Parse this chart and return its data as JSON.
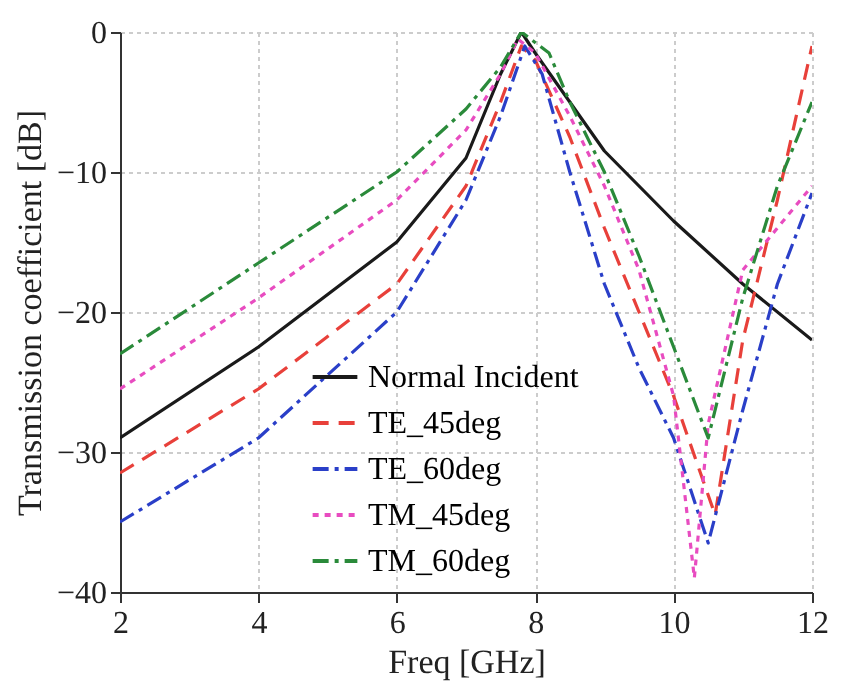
{
  "chart_data": {
    "type": "line",
    "xlabel": "Freq [GHz]",
    "ylabel": "Transmission coefficient [dB]",
    "xlim": [
      2,
      12
    ],
    "xticks": [
      2,
      4,
      6,
      8,
      10,
      12
    ],
    "ylim": [
      -40,
      0
    ],
    "yticks": [
      -40,
      -30,
      -20,
      -10,
      0
    ],
    "grid": true,
    "legend": "bottom",
    "marker": "none",
    "series": [
      {
        "name": "Normal Incident",
        "color": "#1a1a1a",
        "line_style": "solid",
        "x": [
          2,
          4,
          6,
          7,
          7.5,
          7.8,
          8,
          8.5,
          9,
          10,
          11,
          12
        ],
        "values": [
          -29,
          -22.5,
          -15,
          -9,
          -3,
          0,
          -1.5,
          -5,
          -8.5,
          -13.5,
          -18,
          -22
        ]
      },
      {
        "name": "TE_45deg",
        "color": "#e8403a",
        "line_style": "dashed",
        "x": [
          2,
          4,
          6,
          7,
          7.5,
          7.8,
          8,
          8.5,
          9,
          9.5,
          10,
          10.6,
          11,
          11.5,
          12
        ],
        "values": [
          -31.5,
          -25.5,
          -18,
          -11,
          -5,
          -1,
          -2,
          -7.5,
          -14,
          -20,
          -26,
          -34.5,
          -22,
          -12,
          -1
        ]
      },
      {
        "name": "TE_60deg",
        "color": "#2a3fc8",
        "line_style": "dashdot",
        "x": [
          2,
          4,
          6,
          7,
          7.5,
          7.85,
          8.1,
          8.5,
          9,
          9.5,
          10,
          10.5,
          11,
          11.5,
          12
        ],
        "values": [
          -35,
          -29,
          -20,
          -12,
          -6,
          -1,
          -3,
          -10,
          -18,
          -24,
          -29,
          -36.5,
          -27,
          -18,
          -11.5
        ]
      },
      {
        "name": "TM_45deg",
        "color": "#e84cc0",
        "line_style": "dotted",
        "x": [
          2,
          4,
          6,
          7,
          7.5,
          7.75,
          8,
          8.5,
          9,
          9.5,
          10,
          10.3,
          10.5,
          11,
          12
        ],
        "values": [
          -25.5,
          -19,
          -12,
          -7,
          -3,
          -0.5,
          -1.5,
          -6,
          -11,
          -17,
          -26,
          -39,
          -28,
          -17,
          -11
        ]
      },
      {
        "name": "TM_60deg",
        "color": "#2a8a3a",
        "line_style": "dashdot",
        "x": [
          2,
          4,
          6,
          7,
          7.5,
          7.8,
          8.2,
          8.5,
          9,
          9.5,
          10,
          10.5,
          11,
          11.5,
          12
        ],
        "values": [
          -23,
          -16.5,
          -10,
          -5.5,
          -2.5,
          0,
          -1.5,
          -5,
          -10,
          -16,
          -22.5,
          -29,
          -19,
          -11,
          -5
        ]
      }
    ]
  }
}
